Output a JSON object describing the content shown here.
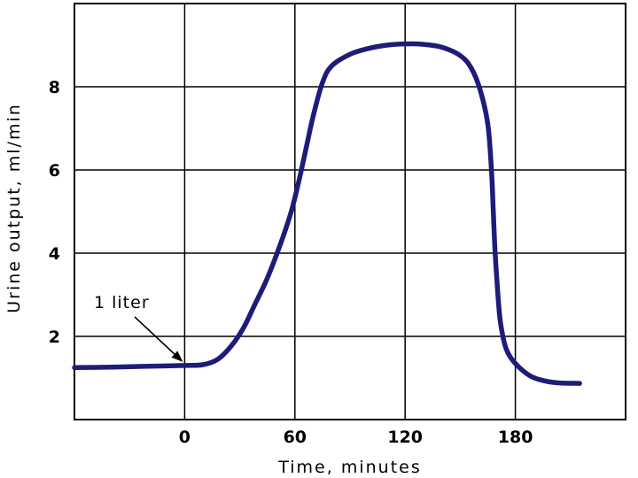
{
  "chart_data": {
    "type": "line",
    "title": "",
    "xlabel": "Time, minutes",
    "ylabel": "Urine output, ml/min",
    "xlim": [
      -60,
      240
    ],
    "ylim": [
      0,
      10
    ],
    "x_ticks": [
      0,
      60,
      120,
      180
    ],
    "y_ticks": [
      2,
      4,
      6,
      8
    ],
    "grid": true,
    "series": [
      {
        "color": "#1e1c78",
        "points": [
          [
            -60,
            1.25
          ],
          [
            -40,
            1.26
          ],
          [
            -20,
            1.28
          ],
          [
            0,
            1.3
          ],
          [
            10,
            1.32
          ],
          [
            18,
            1.45
          ],
          [
            25,
            1.75
          ],
          [
            32,
            2.2
          ],
          [
            38,
            2.75
          ],
          [
            45,
            3.4
          ],
          [
            52,
            4.2
          ],
          [
            58,
            5.0
          ],
          [
            62,
            5.7
          ],
          [
            66,
            6.5
          ],
          [
            70,
            7.3
          ],
          [
            75,
            8.1
          ],
          [
            80,
            8.5
          ],
          [
            90,
            8.78
          ],
          [
            100,
            8.92
          ],
          [
            110,
            9.0
          ],
          [
            120,
            9.03
          ],
          [
            130,
            9.02
          ],
          [
            140,
            8.95
          ],
          [
            150,
            8.75
          ],
          [
            156,
            8.45
          ],
          [
            161,
            7.9
          ],
          [
            165,
            7.1
          ],
          [
            167,
            6.0
          ],
          [
            168,
            5.0
          ],
          [
            169,
            4.0
          ],
          [
            170.5,
            3.0
          ],
          [
            172,
            2.3
          ],
          [
            175,
            1.7
          ],
          [
            180,
            1.35
          ],
          [
            188,
            1.05
          ],
          [
            196,
            0.93
          ],
          [
            204,
            0.88
          ],
          [
            215,
            0.87
          ]
        ]
      }
    ],
    "annotations": [
      {
        "text": "1 liter",
        "x": 0,
        "y": 1.3
      }
    ]
  }
}
